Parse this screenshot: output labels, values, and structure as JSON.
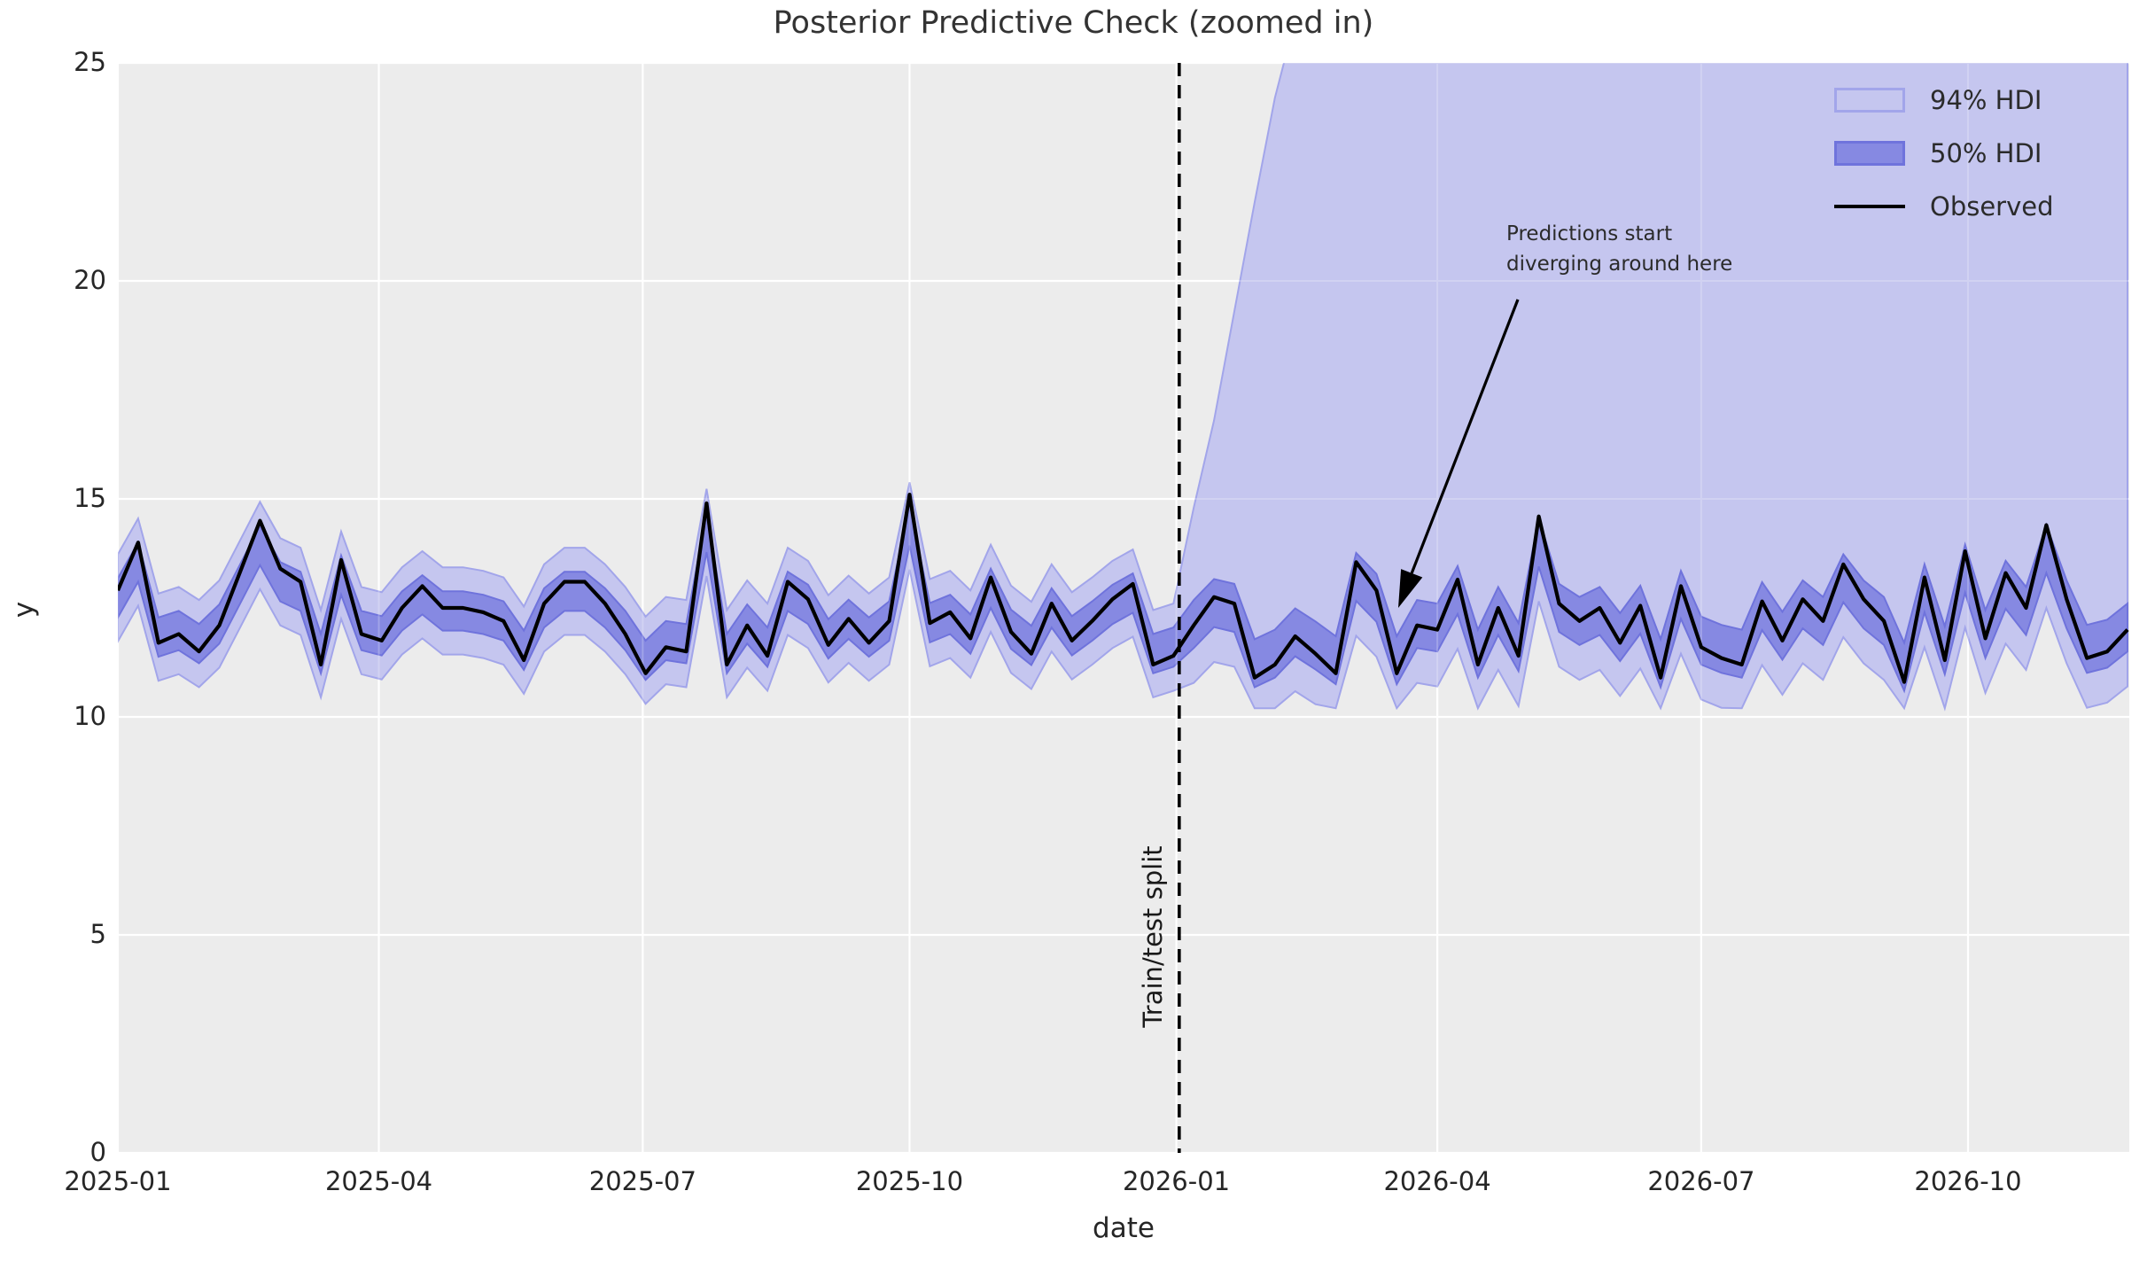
{
  "title": "Posterior Predictive Check (zoomed in)",
  "annotation": {
    "text": "Predictions start\ndiverging around here"
  },
  "split_label": "Train/test split",
  "legend": [
    {
      "label": "94% HDI",
      "swatch": "band94"
    },
    {
      "label": "50% HDI",
      "swatch": "band50"
    },
    {
      "label": "Observed",
      "swatch": "line"
    }
  ],
  "colors": {
    "hdi94_fill": "#c5c6ef",
    "hdi94_edge": "#a2a5ea",
    "hdi50_fill": "#8689e2",
    "hdi50_edge": "#6f73dc",
    "observed": "#000000",
    "plot_background": "#ececec",
    "gridline": "#ffffff",
    "split_line": "#000000"
  },
  "chart_data": {
    "type": "line",
    "title": "Posterior Predictive Check (zoomed in)",
    "xlabel": "date",
    "ylabel": "y",
    "ylim": [
      0,
      25
    ],
    "grid": true,
    "legend_position": "upper right",
    "y_ticks": [
      0,
      5,
      10,
      15,
      20,
      25
    ],
    "x_ticks": [
      {
        "day": 0,
        "label": "2025-01"
      },
      {
        "day": 90,
        "label": "2025-04"
      },
      {
        "day": 181,
        "label": "2025-07"
      },
      {
        "day": 273,
        "label": "2025-10"
      },
      {
        "day": 365,
        "label": "2026-01"
      },
      {
        "day": 455,
        "label": "2026-04"
      },
      {
        "day": 546,
        "label": "2026-07"
      },
      {
        "day": 638,
        "label": "2026-10"
      }
    ],
    "x_start_date": "2025-01-01",
    "x_step_days": 7,
    "x_end_day": 694,
    "train_test_split_day": 366,
    "note": "hdi94_upper values of 26 are off-chart (band exceeds y-axis limit of 25 after the split)",
    "series": [
      {
        "name": "Observed",
        "values": [
          12.9,
          14.0,
          11.7,
          11.9,
          11.5,
          12.1,
          13.3,
          14.5,
          13.4,
          13.1,
          11.2,
          13.6,
          11.9,
          11.75,
          12.5,
          13.0,
          12.5,
          12.5,
          12.4,
          12.2,
          11.3,
          12.6,
          13.1,
          13.1,
          12.6,
          11.9,
          11.0,
          11.6,
          11.5,
          14.9,
          11.2,
          12.1,
          11.4,
          13.1,
          12.7,
          11.65,
          12.25,
          11.7,
          12.2,
          15.1,
          12.15,
          12.4,
          11.8,
          13.2,
          11.95,
          11.45,
          12.6,
          11.75,
          12.2,
          12.7,
          13.05,
          11.2,
          11.4,
          12.1,
          12.75,
          12.6,
          10.9,
          11.2,
          11.85,
          11.45,
          11.0,
          13.55,
          12.9,
          11.0,
          12.1,
          12.0,
          13.15,
          11.2,
          12.5,
          11.4,
          14.6,
          12.6,
          12.2,
          12.5,
          11.7,
          12.55,
          10.9,
          13.0,
          11.6,
          11.35,
          11.2,
          12.65,
          11.75,
          12.7,
          12.2,
          13.5,
          12.7,
          12.2,
          10.8,
          13.2,
          11.3,
          13.8,
          11.8,
          13.3,
          12.5,
          14.4,
          12.7,
          11.35,
          11.5,
          12.0
        ]
      }
    ],
    "hdi50_lower": [
      12.28,
      13.1,
      11.38,
      11.53,
      11.23,
      11.68,
      12.58,
      13.48,
      12.65,
      12.43,
      11.0,
      12.8,
      11.53,
      11.41,
      11.98,
      12.35,
      11.98,
      11.98,
      11.9,
      11.75,
      11.08,
      12.05,
      12.43,
      12.43,
      12.05,
      11.53,
      10.85,
      11.3,
      11.23,
      13.78,
      11.0,
      11.68,
      11.15,
      12.43,
      12.13,
      11.34,
      11.79,
      11.38,
      11.75,
      13.93,
      11.71,
      11.9,
      11.45,
      12.5,
      11.56,
      11.19,
      12.05,
      11.41,
      11.75,
      12.13,
      12.39,
      11.0,
      11.15,
      11.58,
      12.06,
      11.95,
      10.68,
      10.9,
      11.39,
      11.09,
      10.75,
      12.66,
      12.18,
      10.75,
      11.58,
      11.5,
      12.36,
      10.9,
      11.88,
      11.05,
      13.45,
      11.95,
      11.65,
      11.88,
      11.28,
      11.91,
      10.68,
      12.25,
      11.2,
      11.01,
      10.9,
      11.99,
      11.31,
      12.03,
      11.65,
      12.63,
      12.03,
      11.65,
      10.6,
      12.4,
      10.98,
      12.85,
      11.35,
      12.48,
      11.88,
      13.3,
      12.03,
      11.01,
      11.13,
      11.5
    ],
    "hdi50_upper": [
      13.18,
      14.0,
      12.28,
      12.43,
      12.13,
      12.58,
      13.48,
      14.38,
      13.55,
      13.33,
      11.9,
      13.7,
      12.43,
      12.31,
      12.88,
      13.25,
      12.88,
      12.88,
      12.8,
      12.65,
      11.98,
      12.95,
      13.33,
      13.33,
      12.95,
      12.43,
      11.75,
      12.2,
      12.13,
      14.68,
      11.9,
      12.58,
      12.05,
      13.33,
      13.03,
      12.24,
      12.69,
      12.28,
      12.65,
      14.83,
      12.61,
      12.8,
      12.35,
      13.4,
      12.46,
      12.09,
      12.95,
      12.31,
      12.65,
      13.03,
      13.29,
      11.9,
      12.05,
      12.68,
      13.16,
      13.05,
      11.78,
      12.0,
      12.49,
      12.19,
      11.85,
      13.76,
      13.28,
      11.85,
      12.68,
      12.6,
      13.46,
      12.0,
      12.98,
      12.15,
      14.55,
      13.05,
      12.75,
      12.98,
      12.38,
      13.01,
      11.78,
      13.35,
      12.3,
      12.11,
      12.0,
      13.09,
      12.41,
      13.13,
      12.75,
      13.73,
      13.13,
      12.75,
      11.7,
      13.5,
      12.08,
      13.95,
      12.45,
      13.58,
      12.98,
      14.4,
      13.13,
      12.11,
      12.23,
      12.6
    ],
    "hdi94_lower": [
      11.73,
      12.55,
      10.83,
      10.98,
      10.68,
      11.13,
      12.03,
      12.93,
      12.1,
      11.88,
      10.45,
      12.25,
      10.98,
      10.86,
      11.43,
      11.8,
      11.43,
      11.43,
      11.35,
      11.2,
      10.53,
      11.5,
      11.88,
      11.88,
      11.5,
      10.98,
      10.3,
      10.75,
      10.68,
      13.23,
      10.45,
      11.13,
      10.6,
      11.88,
      11.58,
      10.79,
      11.24,
      10.83,
      11.2,
      13.38,
      11.16,
      11.35,
      10.9,
      11.95,
      11.01,
      10.64,
      11.5,
      10.86,
      11.2,
      11.58,
      11.84,
      10.45,
      10.6,
      10.78,
      11.26,
      11.15,
      10.2,
      10.2,
      10.59,
      10.29,
      10.2,
      11.86,
      11.38,
      10.2,
      10.78,
      10.7,
      11.56,
      10.2,
      11.08,
      10.25,
      12.65,
      11.15,
      10.85,
      11.08,
      10.48,
      11.11,
      10.2,
      11.45,
      10.4,
      10.21,
      10.2,
      11.19,
      10.51,
      11.23,
      10.85,
      11.83,
      11.23,
      10.85,
      10.2,
      11.6,
      10.2,
      12.05,
      10.55,
      11.68,
      11.08,
      12.5,
      11.23,
      10.21,
      10.33,
      10.7
    ],
    "hdi94_upper": [
      13.73,
      14.55,
      12.83,
      12.98,
      12.68,
      13.13,
      14.03,
      14.93,
      14.1,
      13.88,
      12.45,
      14.25,
      12.98,
      12.86,
      13.43,
      13.8,
      13.43,
      13.43,
      13.35,
      13.2,
      12.53,
      13.5,
      13.88,
      13.88,
      13.5,
      12.98,
      12.3,
      12.75,
      12.68,
      15.23,
      12.45,
      13.13,
      12.6,
      13.88,
      13.58,
      12.79,
      13.24,
      12.83,
      13.2,
      15.38,
      13.16,
      13.35,
      12.9,
      13.95,
      13.01,
      12.64,
      13.5,
      12.86,
      13.2,
      13.58,
      13.84,
      12.45,
      12.6,
      14.8,
      16.8,
      19.3,
      21.8,
      24.2,
      26,
      26,
      26,
      26,
      26,
      26,
      26,
      26,
      26,
      26,
      26,
      26,
      26,
      26,
      26,
      26,
      26,
      26,
      26,
      26,
      26,
      26,
      26,
      26,
      26,
      26,
      26,
      26,
      26,
      26,
      26,
      26,
      26,
      26,
      26,
      26,
      26,
      26,
      26,
      26,
      26,
      26
    ]
  }
}
